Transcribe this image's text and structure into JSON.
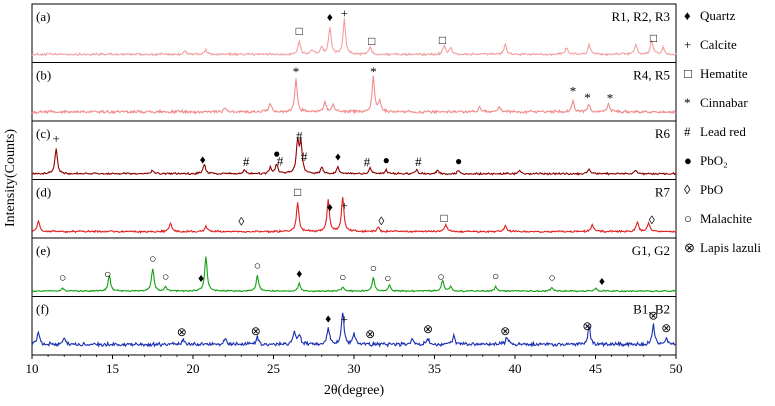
{
  "chart_data": {
    "type": "line",
    "xlabel": "2θ(degree)",
    "ylabel": "Intensity(Counts)",
    "xlim": [
      10,
      50
    ],
    "x_ticks": [
      10,
      15,
      20,
      25,
      30,
      35,
      40,
      45,
      50
    ],
    "grid": false,
    "legend_position": "right",
    "legend": [
      {
        "symbol": "♦",
        "label": "Quartz"
      },
      {
        "symbol": "+",
        "label": "Calcite"
      },
      {
        "symbol": "□",
        "label": "Hematite"
      },
      {
        "symbol": "*",
        "label": "Cinnabar"
      },
      {
        "symbol": "#",
        "label": "Lead red"
      },
      {
        "symbol": "●",
        "label": "PbO₂"
      },
      {
        "symbol": "◊",
        "label": "PbO"
      },
      {
        "symbol": "○",
        "label": "Malachite"
      },
      {
        "symbol": "⊗",
        "label": "Lapis lazuli"
      }
    ],
    "panels": [
      {
        "panel_label": "(a)",
        "samples": "R1, R2, R3",
        "color": "#f2a0a0",
        "baseline": 0.15,
        "noise": 0.05,
        "peaks": [
          [
            19.5,
            0.1
          ],
          [
            20.8,
            0.12
          ],
          [
            26.6,
            0.38
          ],
          [
            27.4,
            0.15
          ],
          [
            28.0,
            0.22
          ],
          [
            28.5,
            0.78
          ],
          [
            29.4,
            1.0
          ],
          [
            31.0,
            0.22
          ],
          [
            35.6,
            0.25
          ],
          [
            36.0,
            0.2
          ],
          [
            39.4,
            0.3
          ],
          [
            43.2,
            0.2
          ],
          [
            44.6,
            0.28
          ],
          [
            47.5,
            0.3
          ],
          [
            48.5,
            0.4
          ],
          [
            49.2,
            0.2
          ]
        ],
        "markers": [
          {
            "x": 28.5,
            "symbol": "♦"
          },
          {
            "x": 29.4,
            "symbol": "+"
          },
          {
            "x": 26.6,
            "symbol": "□"
          },
          {
            "x": 31.1,
            "symbol": "□"
          },
          {
            "x": 35.5,
            "symbol": "□"
          },
          {
            "x": 48.6,
            "symbol": "□"
          }
        ]
      },
      {
        "panel_label": "(b)",
        "samples": "R4, R5",
        "color": "#f08c8c",
        "baseline": 0.18,
        "noise": 0.06,
        "peaks": [
          [
            22.0,
            0.1
          ],
          [
            24.8,
            0.25
          ],
          [
            26.4,
            0.95
          ],
          [
            28.2,
            0.28
          ],
          [
            28.7,
            0.22
          ],
          [
            31.2,
            1.0
          ],
          [
            31.6,
            0.3
          ],
          [
            37.8,
            0.15
          ],
          [
            39.0,
            0.15
          ],
          [
            43.6,
            0.3
          ],
          [
            44.6,
            0.22
          ],
          [
            45.8,
            0.22
          ]
        ],
        "markers": [
          {
            "x": 26.4,
            "symbol": "*"
          },
          {
            "x": 31.2,
            "symbol": "*"
          },
          {
            "x": 43.6,
            "symbol": "*"
          },
          {
            "x": 44.5,
            "symbol": "*"
          },
          {
            "x": 45.9,
            "symbol": "*"
          }
        ]
      },
      {
        "panel_label": "(c)",
        "samples": "R6",
        "color": "#8b0000",
        "baseline": 0.08,
        "noise": 0.04,
        "peaks": [
          [
            11.5,
            0.72
          ],
          [
            17.5,
            0.1
          ],
          [
            20.7,
            0.28
          ],
          [
            23.2,
            0.1
          ],
          [
            24.8,
            0.18
          ],
          [
            25.2,
            0.28
          ],
          [
            26.5,
            0.92
          ],
          [
            26.7,
            0.85
          ],
          [
            28.0,
            0.18
          ],
          [
            29.0,
            0.2
          ],
          [
            31.0,
            0.16
          ],
          [
            32.0,
            0.1
          ],
          [
            33.9,
            0.12
          ],
          [
            35.2,
            0.1
          ],
          [
            36.5,
            0.08
          ],
          [
            40.3,
            0.1
          ],
          [
            44.6,
            0.12
          ],
          [
            47.5,
            0.1
          ]
        ],
        "markers": [
          {
            "x": 11.5,
            "symbol": "+"
          },
          {
            "x": 20.6,
            "symbol": "♦"
          },
          {
            "x": 23.3,
            "symbol": "#"
          },
          {
            "x": 25.2,
            "symbol": "●"
          },
          {
            "x": 25.4,
            "symbol": "#"
          },
          {
            "x": 26.6,
            "symbol": "#"
          },
          {
            "x": 26.9,
            "symbol": "#"
          },
          {
            "x": 29.0,
            "symbol": "♦"
          },
          {
            "x": 30.8,
            "symbol": "#"
          },
          {
            "x": 32.0,
            "symbol": "●"
          },
          {
            "x": 34.0,
            "symbol": "#"
          },
          {
            "x": 36.5,
            "symbol": "●"
          }
        ]
      },
      {
        "panel_label": "(d)",
        "samples": "R7",
        "color": "#e02020",
        "baseline": 0.1,
        "noise": 0.04,
        "peaks": [
          [
            10.4,
            0.3
          ],
          [
            18.6,
            0.25
          ],
          [
            20.8,
            0.15
          ],
          [
            26.5,
            0.85
          ],
          [
            28.4,
            0.9
          ],
          [
            29.3,
            1.0
          ],
          [
            31.5,
            0.12
          ],
          [
            35.7,
            0.22
          ],
          [
            39.4,
            0.18
          ],
          [
            44.8,
            0.2
          ],
          [
            47.6,
            0.28
          ],
          [
            48.3,
            0.25
          ]
        ],
        "markers": [
          {
            "x": 26.5,
            "symbol": "□"
          },
          {
            "x": 28.5,
            "symbol": "♦"
          },
          {
            "x": 29.4,
            "symbol": "+"
          },
          {
            "x": 23.0,
            "symbol": "◊"
          },
          {
            "x": 31.7,
            "symbol": "◊"
          },
          {
            "x": 35.6,
            "symbol": "□"
          },
          {
            "x": 48.5,
            "symbol": "◊"
          }
        ]
      },
      {
        "panel_label": "(e)",
        "samples": "G1, G2",
        "color": "#10a010",
        "baseline": 0.07,
        "noise": 0.03,
        "peaks": [
          [
            11.9,
            0.1
          ],
          [
            14.8,
            0.45
          ],
          [
            17.5,
            0.65
          ],
          [
            18.3,
            0.12
          ],
          [
            20.8,
            1.0
          ],
          [
            24.0,
            0.45
          ],
          [
            26.6,
            0.22
          ],
          [
            29.3,
            0.12
          ],
          [
            31.2,
            0.38
          ],
          [
            32.2,
            0.18
          ],
          [
            35.5,
            0.3
          ],
          [
            36.0,
            0.12
          ],
          [
            38.8,
            0.14
          ],
          [
            42.3,
            0.1
          ],
          [
            45.0,
            0.08
          ]
        ],
        "markers": [
          {
            "x": 11.9,
            "symbol": "○"
          },
          {
            "x": 14.7,
            "symbol": "○"
          },
          {
            "x": 17.5,
            "symbol": "○"
          },
          {
            "x": 18.3,
            "symbol": "○"
          },
          {
            "x": 20.5,
            "symbol": "♦"
          },
          {
            "x": 24.0,
            "symbol": "○"
          },
          {
            "x": 26.6,
            "symbol": "♦"
          },
          {
            "x": 29.3,
            "symbol": "○"
          },
          {
            "x": 31.2,
            "symbol": "○"
          },
          {
            "x": 32.1,
            "symbol": "○"
          },
          {
            "x": 35.4,
            "symbol": "○"
          },
          {
            "x": 38.8,
            "symbol": "○"
          },
          {
            "x": 42.3,
            "symbol": "○"
          },
          {
            "x": 45.4,
            "symbol": "♦"
          }
        ]
      },
      {
        "panel_label": "(f)",
        "samples": "B1, B2",
        "color": "#1a2fb0",
        "baseline": 0.22,
        "noise": 0.08,
        "peaks": [
          [
            10.4,
            0.35
          ],
          [
            12.0,
            0.22
          ],
          [
            19.4,
            0.15
          ],
          [
            22.0,
            0.18
          ],
          [
            24.0,
            0.22
          ],
          [
            26.3,
            0.35
          ],
          [
            26.6,
            0.3
          ],
          [
            28.4,
            0.45
          ],
          [
            29.3,
            0.95
          ],
          [
            30.0,
            0.3
          ],
          [
            33.6,
            0.18
          ],
          [
            34.6,
            0.15
          ],
          [
            36.2,
            0.25
          ],
          [
            39.5,
            0.22
          ],
          [
            44.6,
            0.55
          ],
          [
            48.6,
            0.55
          ],
          [
            49.4,
            0.18
          ]
        ],
        "markers": [
          {
            "x": 19.3,
            "symbol": "⊗"
          },
          {
            "x": 23.9,
            "symbol": "⊗"
          },
          {
            "x": 28.4,
            "symbol": "♦"
          },
          {
            "x": 29.4,
            "symbol": "+"
          },
          {
            "x": 31.0,
            "symbol": "⊗"
          },
          {
            "x": 34.6,
            "symbol": "⊗"
          },
          {
            "x": 39.4,
            "symbol": "⊗"
          },
          {
            "x": 44.5,
            "symbol": "⊗"
          },
          {
            "x": 48.6,
            "symbol": "⊗"
          },
          {
            "x": 49.4,
            "symbol": "⊗"
          }
        ]
      }
    ]
  }
}
